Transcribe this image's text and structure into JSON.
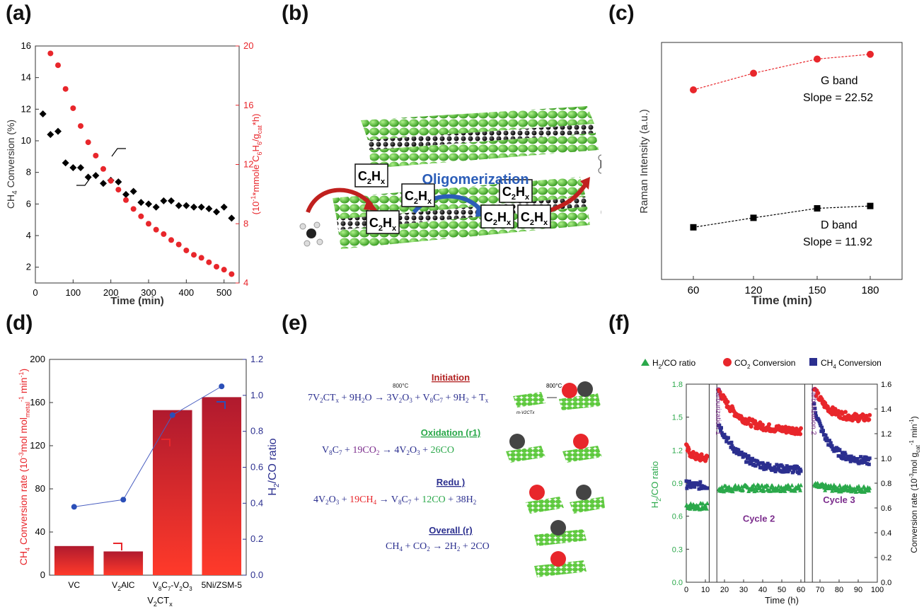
{
  "panels": {
    "a": "(a)",
    "b": "(b)",
    "c": "(c)",
    "d": "(d)",
    "e": "(e)",
    "f": "(f)"
  },
  "colors": {
    "red": "#e8262b",
    "blue": "#2b2f8f",
    "green": "#2aa84a",
    "purple": "#7b2c8c",
    "darkred": "#b22222",
    "lattice_green": "#5ec93e"
  },
  "chart_data": [
    {
      "id": "a",
      "type": "scatter",
      "xlabel": "Time (min)",
      "ylabel_left": "CH4 Conversion (%)",
      "ylabel_right": "(10^-1*mmole C6H6/gcat*h)",
      "xlim": [
        0,
        540
      ],
      "ylim_left": [
        1,
        16
      ],
      "ylim_right": [
        4,
        20
      ],
      "xticks": [
        0,
        100,
        200,
        300,
        400,
        500
      ],
      "yticks_left": [
        2,
        4,
        6,
        8,
        10,
        12,
        14,
        16
      ],
      "yticks_right": [
        4,
        8,
        12,
        16,
        20
      ],
      "series": [
        {
          "axis": "left",
          "color": "#000000",
          "marker": "diamond",
          "x": [
            20,
            40,
            60,
            80,
            100,
            120,
            140,
            160,
            180,
            200,
            220,
            240,
            260,
            280,
            300,
            320,
            340,
            360,
            380,
            400,
            420,
            440,
            460,
            480,
            500,
            520
          ],
          "y": [
            11.7,
            10.4,
            10.6,
            8.6,
            8.3,
            8.3,
            7.7,
            7.8,
            7.3,
            7.5,
            7.4,
            6.6,
            6.8,
            6.1,
            6.0,
            5.8,
            6.2,
            6.2,
            5.9,
            5.9,
            5.8,
            5.8,
            5.7,
            5.5,
            5.8,
            5.1
          ]
        },
        {
          "axis": "right",
          "color": "#e8262b",
          "marker": "circle",
          "x": [
            40,
            60,
            80,
            100,
            120,
            140,
            160,
            180,
            200,
            220,
            240,
            260,
            280,
            300,
            320,
            340,
            360,
            380,
            400,
            420,
            440,
            460,
            480,
            500,
            520
          ],
          "y": [
            19.5,
            18.7,
            17.1,
            15.8,
            14.6,
            13.5,
            12.6,
            11.7,
            10.9,
            10.3,
            9.6,
            9.0,
            8.5,
            8.0,
            7.6,
            7.3,
            6.9,
            6.6,
            6.2,
            5.9,
            5.7,
            5.4,
            5.1,
            4.9,
            4.6
          ]
        }
      ]
    },
    {
      "id": "c",
      "type": "line",
      "xlabel": "Time (min)",
      "ylabel": "Raman Intensity (a.u.)",
      "categories": [
        "60",
        "120",
        "150",
        "180"
      ],
      "series": [
        {
          "name": "G band",
          "color": "#e8262b",
          "marker": "circle",
          "values": [
            0.8,
            0.87,
            0.93,
            0.95
          ],
          "label": "G band",
          "slope": "Slope = 22.52"
        },
        {
          "name": "D band",
          "color": "#000000",
          "marker": "square",
          "values": [
            0.22,
            0.26,
            0.3,
            0.31
          ],
          "label": "D band",
          "slope": "Slope = 11.92"
        }
      ]
    },
    {
      "id": "d",
      "type": "bar",
      "categories": [
        "VC",
        "V2AlC",
        "V8C7-V2O3",
        "5Ni/ZSM-5"
      ],
      "group_label": "V2CTx",
      "ylabel_left": "CH4 Conversion rate (10^-3mol molmetal^-1 min^-1)",
      "ylabel_right": "H2/CO ratio",
      "ylim_left": [
        0,
        200
      ],
      "ylim_right": [
        0,
        1.2
      ],
      "yticks_left": [
        0,
        40,
        80,
        120,
        160,
        200
      ],
      "yticks_right": [
        0.0,
        0.2,
        0.4,
        0.6,
        0.8,
        1.0,
        1.2
      ],
      "series": [
        {
          "name": "CH4 Conversion rate",
          "axis": "left",
          "values": [
            27,
            22,
            153,
            165
          ]
        },
        {
          "name": "H2/CO ratio",
          "axis": "right",
          "values": [
            0.38,
            0.42,
            0.89,
            1.05
          ]
        }
      ]
    },
    {
      "id": "f",
      "type": "scatter",
      "xlabel": "Time (h)",
      "ylabel_left": "H2/CO ratio",
      "ylabel_right": "Conversion rate (10^-3mol gcat^-1 min^-1)",
      "xlim": [
        0,
        100
      ],
      "ylim_left": [
        0,
        1.8
      ],
      "ylim_right": [
        0,
        1.6
      ],
      "xticks": [
        0,
        10,
        20,
        30,
        40,
        50,
        60,
        70,
        80,
        90,
        100
      ],
      "yticks_left": [
        0.0,
        0.3,
        0.6,
        0.9,
        1.2,
        1.5,
        1.8
      ],
      "yticks_right": [
        0.0,
        0.2,
        0.4,
        0.6,
        0.8,
        1.0,
        1.2,
        1.4,
        1.6
      ],
      "legend": [
        "H2/CO ratio",
        "CO2 Conversion",
        "CH4 Conversion"
      ],
      "annotations": [
        "Carburization 1",
        "Carburization 2",
        "Cycle 2",
        "Cycle 3"
      ],
      "series": [
        {
          "name": "H2/CO ratio",
          "axis": "left",
          "color": "#2aa84a",
          "marker": "triangle",
          "segments": [
            {
              "x0": 0,
              "x1": 11,
              "start": 0.7,
              "end": 0.69
            },
            {
              "x0": 17,
              "x1": 60,
              "start": 0.85,
              "end": 0.86
            },
            {
              "x0": 67,
              "x1": 96,
              "start": 0.88,
              "end": 0.85
            }
          ]
        },
        {
          "name": "CO2 Conversion",
          "axis": "right",
          "color": "#e8262b",
          "marker": "circle",
          "segments": [
            {
              "x0": 0,
              "x1": 11,
              "start": 1.09,
              "end": 1.0
            },
            {
              "x0": 17,
              "x1": 60,
              "start": 1.55,
              "end": 1.22
            },
            {
              "x0": 67,
              "x1": 96,
              "start": 1.56,
              "end": 1.32
            }
          ]
        },
        {
          "name": "CH4 Conversion",
          "axis": "right",
          "color": "#2b2f8f",
          "marker": "square",
          "segments": [
            {
              "x0": 0,
              "x1": 11,
              "start": 0.79,
              "end": 0.78
            },
            {
              "x0": 17,
              "x1": 60,
              "start": 1.28,
              "end": 0.9
            },
            {
              "x0": 67,
              "x1": 96,
              "start": 1.42,
              "end": 0.97
            }
          ]
        }
      ]
    }
  ],
  "scheme_b": {
    "labels": [
      "C2Hx",
      "C2Hx",
      "C2Hx",
      "C2Hx",
      "C2Hx",
      "C2Hx"
    ],
    "oligomerization": "Oligomerization"
  },
  "scheme_e": {
    "steps": [
      {
        "title": "Initiation",
        "title_color": "#b22222",
        "eq": "7V2CTx + 9H2O → 3V2O3 + V8C7 + 9H2 + Tx",
        "temp": "800°C",
        "catalyst": "m-V2CTx"
      },
      {
        "title": "Oxidation (r1)",
        "title_color": "#2aa84a",
        "eq": "V8C7 + 19CO2 → 4V2O3 + 26CO"
      },
      {
        "title": "Redu          )",
        "title_color": "#2b2f8f",
        "eq": "4V2O3 + 19CH4 → V8C7 + 12CO + 38H2"
      },
      {
        "title": "Overall  (r)",
        "title_color": "#2b2f8f",
        "eq": "CH4 + CO2 → 2H2 + 2CO"
      }
    ]
  }
}
